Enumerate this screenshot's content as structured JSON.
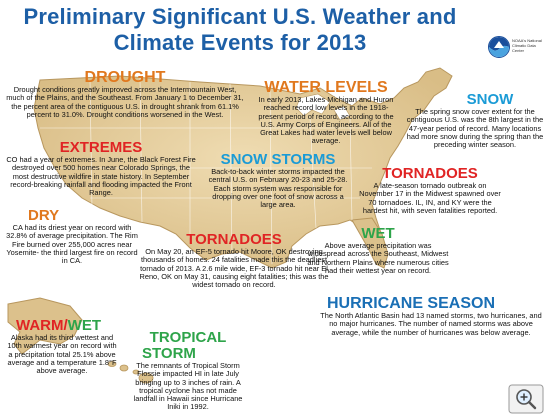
{
  "title": {
    "line1": "Preliminary Significant U.S. Weather and",
    "line2": "Climate Events for 2013"
  },
  "logo": {
    "icon": "noaa-logo-icon",
    "text": "NOAA's National Climatic Data Center"
  },
  "events": {
    "drought": {
      "heading": "DROUGHT",
      "text": "Drought conditions greatly improved across the Intermountain West, much of the Plains, and the Southeast. From January 1 to December 31, the percent area of the contiguous U.S. in drought shrank from 61.1% percent to 31.0%.  Drought conditions worsened in the West."
    },
    "water_levels": {
      "heading": "WATER LEVELS",
      "text": "In early 2013, Lakes Michigan and Huron reached record low levels in the 1918-present period of record, according to the U.S. Army Corps of Engineers. All of the Great Lakes had water levels well below average."
    },
    "snow": {
      "heading": "SNOW",
      "text": "The spring snow cover extent for the contiguous U.S. was the 8th largest in the 47-year period of record. Many locations had more snow during the spring than the preceding winter season."
    },
    "extremes": {
      "heading": "EXTREMES",
      "text": "CO had a year of extremes. In June, the Black Forest Fire destroyed over 500 homes near Colorado Springs, the most destructive wildfire in state history. In September record-breaking rainfall and flooding impacted the Front Range."
    },
    "snow_storms": {
      "heading": "SNOW STORMS",
      "text": "Back-to-back winter storms impacted the central U.S. on February 20-23 and 25-28. Each storm system was responsible for dropping over one foot of snow across a large area."
    },
    "tornadoes_east": {
      "heading": "TORNADOES",
      "text": "A late-season tornado outbreak on November 17 in the Midwest spawned over 70 tornadoes. IL, IN, and KY were the hardest hit, with seven fatalities reported."
    },
    "dry": {
      "heading": "DRY",
      "text": "CA had its driest year on record with 32.8% of average precipitation. The Rim Fire burned over 255,000 acres near Yosemite- the third largest fire on record in CA."
    },
    "tornadoes_central": {
      "heading": "TORNADOES",
      "text": "On May 20, an EF-5 tornado hit Moore, OK destroying thousands of homes. 24 fatalities made this the deadliest tornado of 2013. A 2.6 mile wide, EF-3 tornado hit near El Reno, OK on May 31, causing eight fatalities; this was the widest tornado on record."
    },
    "wet": {
      "heading": "WET",
      "text": "Above average precipitation was widespread across the Southeast, Midwest and Northern Plains where numerous cities had their wettest year on record."
    },
    "hurricane_season": {
      "heading": "HURRICANE SEASON",
      "text": "The North Atlantic Basin had 13 named storms, two hurricanes, and no major hurricanes. The number of named storms was above average, while the number of hurricanes was below average."
    },
    "warm_wet": {
      "heading_a": "WARM",
      "heading_sep": "/",
      "heading_b": "WET",
      "text": "Alaska had its third wettest and 10th warmest year on record with a precipitation total 25.1% above average and a temperature 1.8°F above average."
    },
    "tropical_storm": {
      "heading_line1": "TROPICAL",
      "heading_line2": "STORM",
      "text": "The remnants of Tropical Storm Flossie impacted HI in late July bringing up to 3 inches of rain. A tropical cyclone has not made landfall in Hawaii since Hurricane Iniki in 1992."
    }
  },
  "colors": {
    "title": "#1d5fa6",
    "drought": "#e0781e",
    "extremes": "#e02424",
    "snow": "#1b9bd6",
    "tornadoes": "#e02424",
    "wet": "#2ea44a",
    "hurricane": "#1a6fb5",
    "map_land": "#e6cfa0"
  },
  "zoom_control": {
    "icon": "magnifier-zoom-icon"
  }
}
